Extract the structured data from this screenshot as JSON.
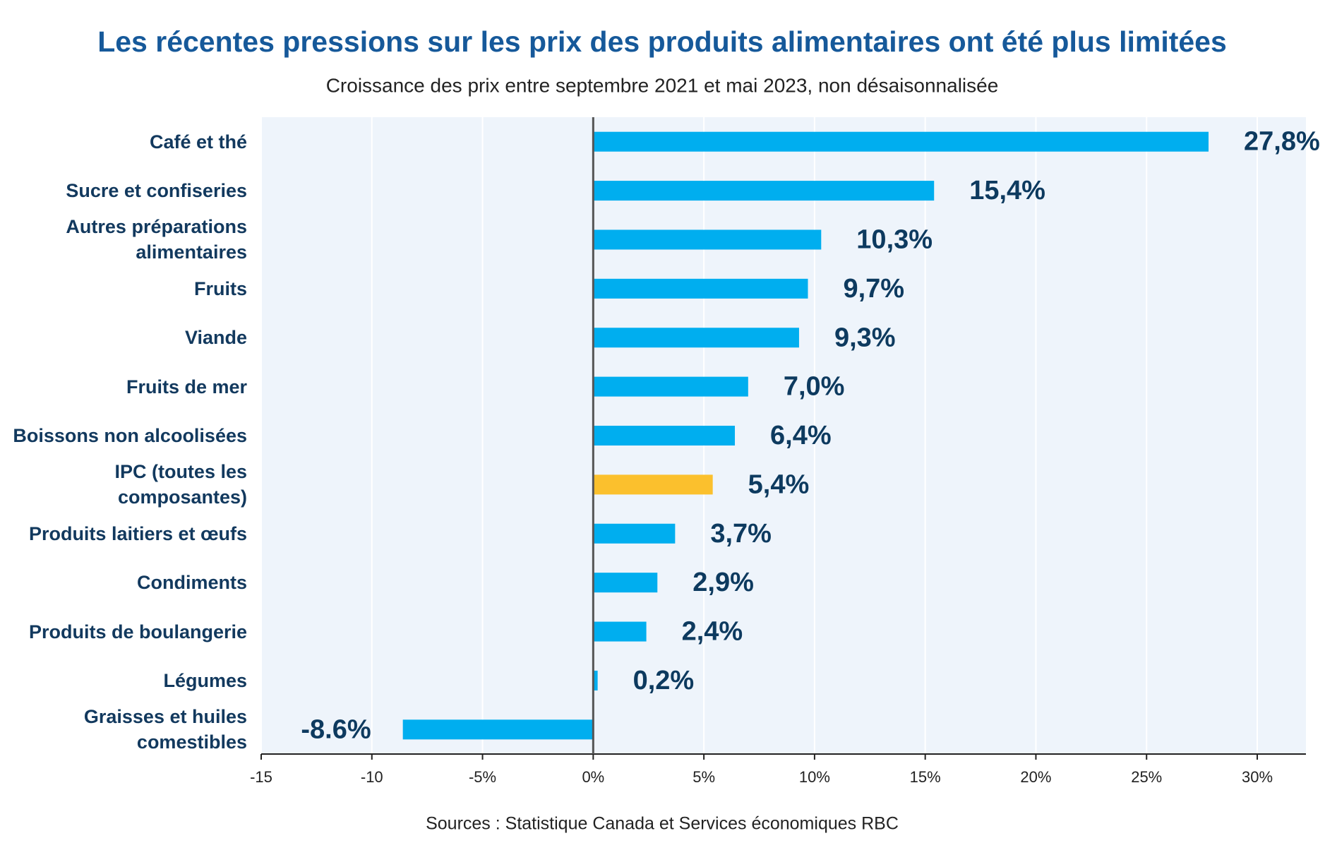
{
  "chart_data": {
    "type": "bar",
    "orientation": "horizontal",
    "title": "Les récentes pressions sur les prix des produits alimentaires ont été plus limitées",
    "subtitle": "Croissance des prix entre septembre 2021 et mai 2023, non désaisonnalisée",
    "source": "Sources : Statistique Canada et Services économiques RBC",
    "categories": [
      "Café et thé",
      "Sucre et confiseries",
      "Autres préparations\nalimentaires",
      "Fruits",
      "Viande",
      "Fruits de mer",
      "Boissons non alcoolisées",
      "IPC (toutes les\ncomposantes)",
      "Produits laitiers et œufs",
      "Condiments",
      "Produits de boulangerie",
      "Légumes",
      "Graisses et huiles\ncomestibles"
    ],
    "values": [
      27.8,
      15.4,
      10.3,
      9.7,
      9.3,
      7.0,
      6.4,
      5.4,
      3.7,
      2.9,
      2.4,
      0.2,
      -8.6
    ],
    "value_labels": [
      "27,8%",
      "15,4%",
      "10,3%",
      "9,7%",
      "9,3%",
      "7,0%",
      "6,4%",
      "5,4%",
      "3,7%",
      "2,9%",
      "2,4%",
      "0,2%",
      "-8.6%"
    ],
    "colors": [
      "#00aeef",
      "#00aeef",
      "#00aeef",
      "#00aeef",
      "#00aeef",
      "#00aeef",
      "#00aeef",
      "#fbc02d",
      "#00aeef",
      "#00aeef",
      "#00aeef",
      "#00aeef",
      "#00aeef"
    ],
    "xlim": [
      -15,
      32.2
    ],
    "xticks": [
      -15,
      -10,
      {
        "value": -5,
        "label": "-5%"
      },
      {
        "value": 0,
        "label": "0%"
      },
      {
        "value": 5,
        "label": "5%"
      },
      {
        "value": 10,
        "label": "10%"
      },
      {
        "value": 15,
        "label": "15%"
      },
      {
        "value": 20,
        "label": "20%"
      },
      {
        "value": 25,
        "label": "25%"
      },
      {
        "value": 30,
        "label": "30%"
      }
    ],
    "grid": true
  }
}
